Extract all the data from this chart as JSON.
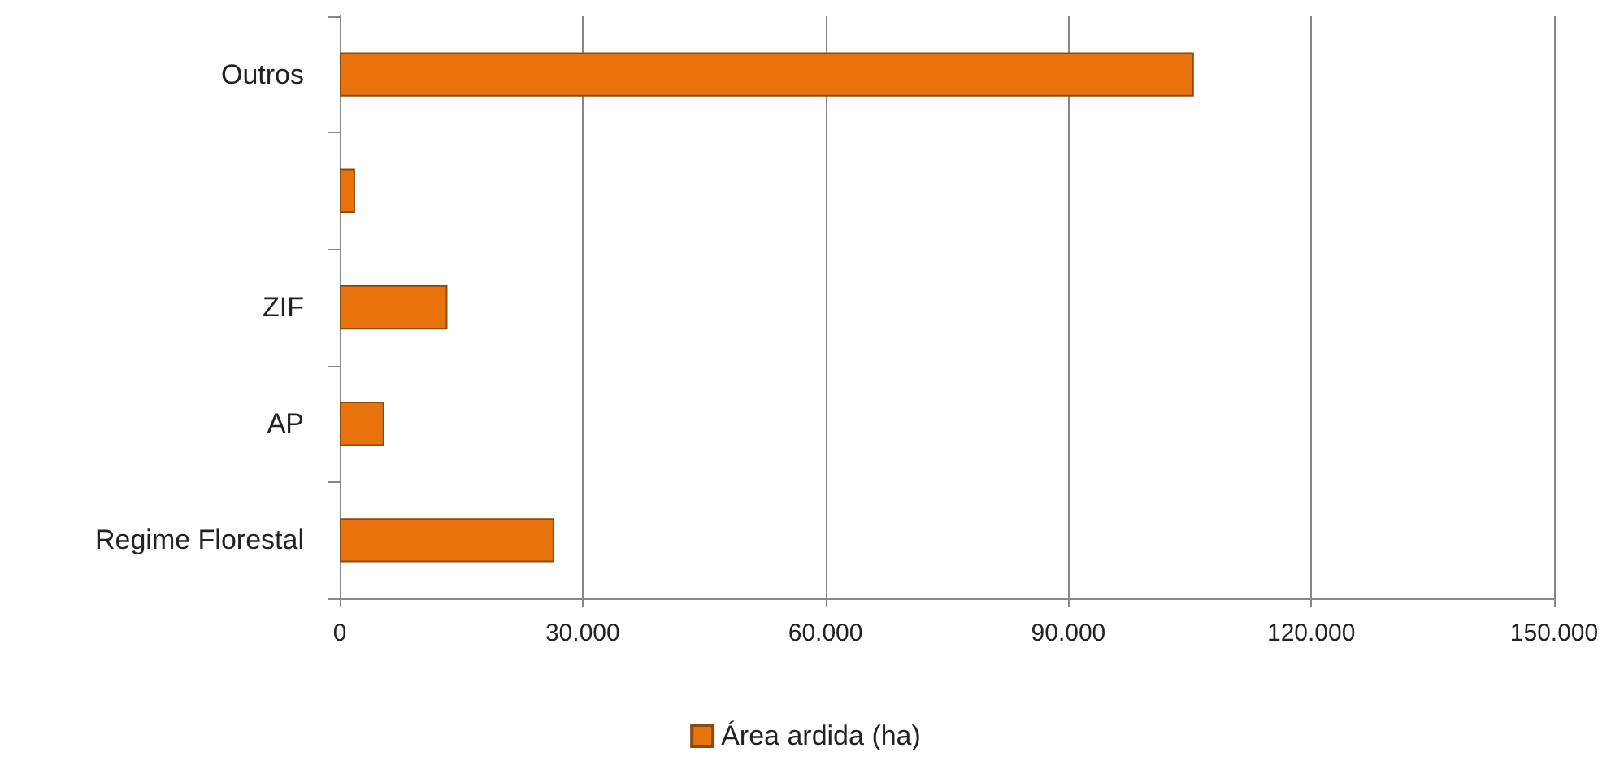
{
  "chart_data": {
    "type": "bar",
    "orientation": "horizontal",
    "categories": [
      "Outros",
      null,
      "ZIF",
      "AP",
      "Regime Florestal"
    ],
    "series": [
      {
        "name": "Área ardida (ha)",
        "color": "#e8720c",
        "values": [
          105500,
          1900,
          13300,
          5500,
          26500
        ]
      }
    ],
    "xlim": [
      0,
      150000
    ],
    "xticks": [
      0,
      {
        "value": 30000,
        "label": "30.000"
      },
      {
        "value": 60000,
        "label": "60.000"
      },
      {
        "value": 90000,
        "label": "90.000"
      },
      {
        "value": 120000,
        "label": "120.000"
      },
      {
        "value": 150000,
        "label": "150.000"
      }
    ],
    "grid": "x",
    "legend": "bottom"
  }
}
